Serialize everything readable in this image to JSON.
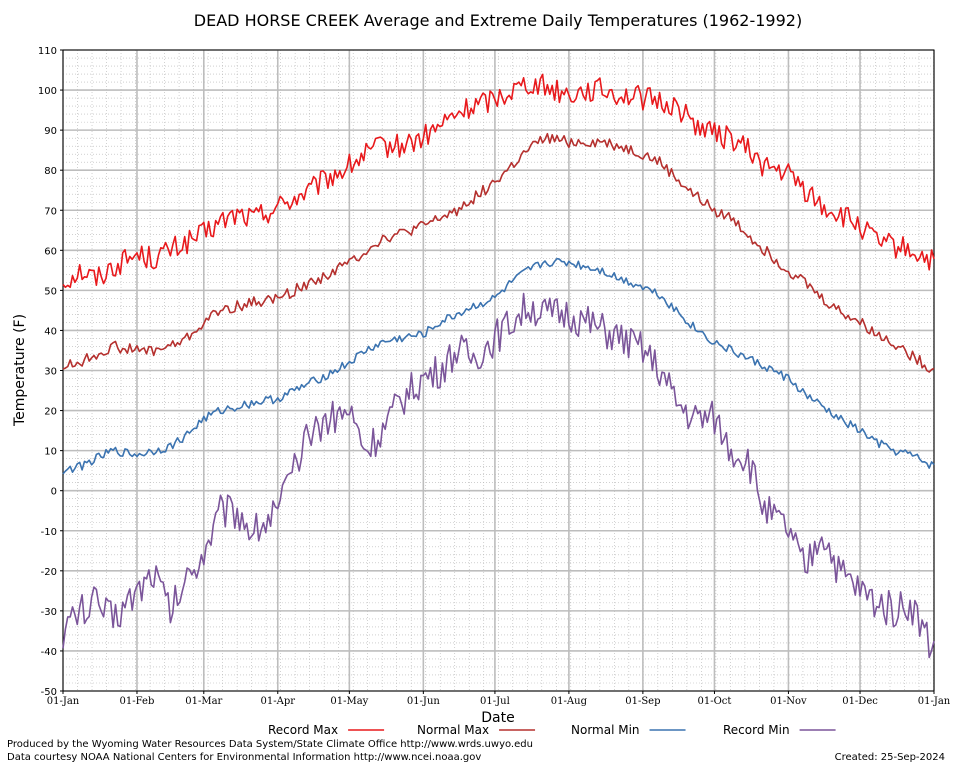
{
  "chart_data": {
    "type": "line",
    "title": "DEAD HORSE CREEK Average and Extreme Daily Temperatures (1962-1992)",
    "xlabel": "Date",
    "ylabel": "Temperature (F)",
    "ylim": [
      -50,
      110
    ],
    "y_ticks": [
      "110",
      "100",
      "90",
      "80",
      "70",
      "60",
      "50",
      "40",
      "30",
      "20",
      "10",
      "0",
      "-10",
      "-20",
      "-30",
      "-40",
      "-50"
    ],
    "x_ticks": [
      "01-Jan",
      "01-Feb",
      "01-Mar",
      "01-Apr",
      "01-May",
      "01-Jun",
      "01-Jul",
      "01-Aug",
      "01-Sep",
      "01-Oct",
      "01-Nov",
      "01-Dec",
      "01-Jan"
    ],
    "grid": true,
    "legend_position": "bottom",
    "series": [
      {
        "name": "Record Max",
        "color": "#e8191c",
        "x": [
          "01-Jan",
          "08-Jan",
          "15-Jan",
          "22-Jan",
          "01-Feb",
          "08-Feb",
          "15-Feb",
          "22-Feb",
          "01-Mar",
          "08-Mar",
          "15-Mar",
          "22-Mar",
          "01-Apr",
          "08-Apr",
          "15-Apr",
          "22-Apr",
          "01-May",
          "08-May",
          "15-May",
          "22-May",
          "01-Jun",
          "08-Jun",
          "15-Jun",
          "22-Jun",
          "01-Jul",
          "08-Jul",
          "15-Jul",
          "22-Jul",
          "01-Aug",
          "08-Aug",
          "15-Aug",
          "22-Aug",
          "01-Sep",
          "08-Sep",
          "15-Sep",
          "22-Sep",
          "01-Oct",
          "08-Oct",
          "15-Oct",
          "22-Oct",
          "01-Nov",
          "08-Nov",
          "15-Nov",
          "22-Nov",
          "01-Dec",
          "08-Dec",
          "15-Dec",
          "22-Dec",
          "31-Dec"
        ],
        "y": [
          52,
          55,
          53,
          56,
          59,
          58,
          60,
          62,
          64,
          67,
          69,
          68,
          71,
          73,
          75,
          78,
          81,
          84,
          86,
          86,
          88,
          91,
          94,
          96,
          98,
          100,
          102,
          101,
          99,
          100,
          100,
          99,
          98,
          97,
          96,
          92,
          89,
          88,
          85,
          81,
          79,
          75,
          71,
          69,
          66,
          62,
          61,
          60,
          57
        ]
      },
      {
        "name": "Normal Max",
        "color": "#b5302e",
        "x": [
          "01-Jan",
          "08-Jan",
          "15-Jan",
          "22-Jan",
          "01-Feb",
          "08-Feb",
          "15-Feb",
          "22-Feb",
          "01-Mar",
          "08-Mar",
          "15-Mar",
          "22-Mar",
          "01-Apr",
          "08-Apr",
          "15-Apr",
          "22-Apr",
          "01-May",
          "08-May",
          "15-May",
          "22-May",
          "01-Jun",
          "08-Jun",
          "15-Jun",
          "22-Jun",
          "01-Jul",
          "08-Jul",
          "15-Jul",
          "22-Jul",
          "01-Aug",
          "08-Aug",
          "15-Aug",
          "22-Aug",
          "01-Sep",
          "08-Sep",
          "15-Sep",
          "22-Sep",
          "01-Oct",
          "08-Oct",
          "15-Oct",
          "22-Oct",
          "01-Nov",
          "08-Nov",
          "15-Nov",
          "22-Nov",
          "01-Dec",
          "08-Dec",
          "15-Dec",
          "22-Dec",
          "31-Dec"
        ],
        "y": [
          31,
          32,
          34,
          36,
          35,
          35,
          36,
          38,
          42,
          45,
          46,
          47,
          48,
          50,
          52,
          54,
          57,
          60,
          63,
          64,
          66,
          68,
          70,
          73,
          77,
          81,
          85,
          88,
          87,
          87,
          87,
          86,
          84,
          82,
          78,
          74,
          70,
          68,
          64,
          60,
          55,
          52,
          48,
          45,
          42,
          39,
          37,
          34,
          30
        ]
      },
      {
        "name": "Normal Min",
        "color": "#3b73b0",
        "x": [
          "01-Jan",
          "08-Jan",
          "15-Jan",
          "22-Jan",
          "01-Feb",
          "08-Feb",
          "15-Feb",
          "22-Feb",
          "01-Mar",
          "08-Mar",
          "15-Mar",
          "22-Mar",
          "01-Apr",
          "08-Apr",
          "15-Apr",
          "22-Apr",
          "01-May",
          "08-May",
          "15-May",
          "22-May",
          "01-Jun",
          "08-Jun",
          "15-Jun",
          "22-Jun",
          "01-Jul",
          "08-Jul",
          "15-Jul",
          "22-Jul",
          "01-Aug",
          "08-Aug",
          "15-Aug",
          "22-Aug",
          "01-Sep",
          "08-Sep",
          "15-Sep",
          "22-Sep",
          "01-Oct",
          "08-Oct",
          "15-Oct",
          "22-Oct",
          "01-Nov",
          "08-Nov",
          "15-Nov",
          "22-Nov",
          "01-Dec",
          "08-Dec",
          "15-Dec",
          "22-Dec",
          "31-Dec"
        ],
        "y": [
          5,
          6,
          8,
          10,
          9,
          10,
          11,
          14,
          18,
          20,
          21,
          22,
          23,
          25,
          27,
          29,
          32,
          35,
          37,
          38,
          39,
          42,
          44,
          46,
          48,
          52,
          55,
          57,
          57,
          56,
          55,
          53,
          51,
          49,
          45,
          41,
          37,
          35,
          33,
          31,
          28,
          24,
          21,
          18,
          15,
          12,
          10,
          9,
          6
        ]
      },
      {
        "name": "Record Min",
        "color": "#7b559a",
        "x": [
          "01-Jan",
          "08-Jan",
          "15-Jan",
          "22-Jan",
          "01-Feb",
          "08-Feb",
          "15-Feb",
          "22-Feb",
          "01-Mar",
          "08-Mar",
          "15-Mar",
          "22-Mar",
          "01-Apr",
          "08-Apr",
          "15-Apr",
          "22-Apr",
          "01-May",
          "08-May",
          "15-May",
          "22-May",
          "01-Jun",
          "08-Jun",
          "15-Jun",
          "22-Jun",
          "01-Jul",
          "08-Jul",
          "15-Jul",
          "22-Jul",
          "01-Aug",
          "08-Aug",
          "15-Aug",
          "22-Aug",
          "01-Sep",
          "08-Sep",
          "15-Sep",
          "22-Sep",
          "01-Oct",
          "08-Oct",
          "15-Oct",
          "22-Oct",
          "01-Nov",
          "08-Nov",
          "15-Nov",
          "22-Nov",
          "01-Dec",
          "08-Dec",
          "15-Dec",
          "22-Dec",
          "31-Dec"
        ],
        "y": [
          -35,
          -30,
          -28,
          -32,
          -25,
          -20,
          -30,
          -22,
          -15,
          -5,
          -5,
          -10,
          -5,
          5,
          15,
          18,
          20,
          10,
          15,
          22,
          28,
          30,
          35,
          33,
          38,
          42,
          46,
          44,
          44,
          42,
          40,
          38,
          35,
          30,
          22,
          18,
          18,
          10,
          8,
          -5,
          -10,
          -20,
          -10,
          -20,
          -25,
          -28,
          -30,
          -28,
          -40
        ]
      }
    ]
  },
  "legend": {
    "items": [
      {
        "label": "Record Max",
        "color": "#e8191c"
      },
      {
        "label": "Normal Max",
        "color": "#b5302e"
      },
      {
        "label": "Normal Min",
        "color": "#3b73b0"
      },
      {
        "label": "Record Min",
        "color": "#7b559a"
      }
    ]
  },
  "footer": {
    "credit1": "Produced by the Wyoming Water Resources Data System/State Climate Office http://www.wrds.uwyo.edu",
    "credit2": "Data courtesy NOAA National Centers for Environmental Information http://www.ncei.noaa.gov",
    "created": "Created:  25-Sep-2024"
  }
}
